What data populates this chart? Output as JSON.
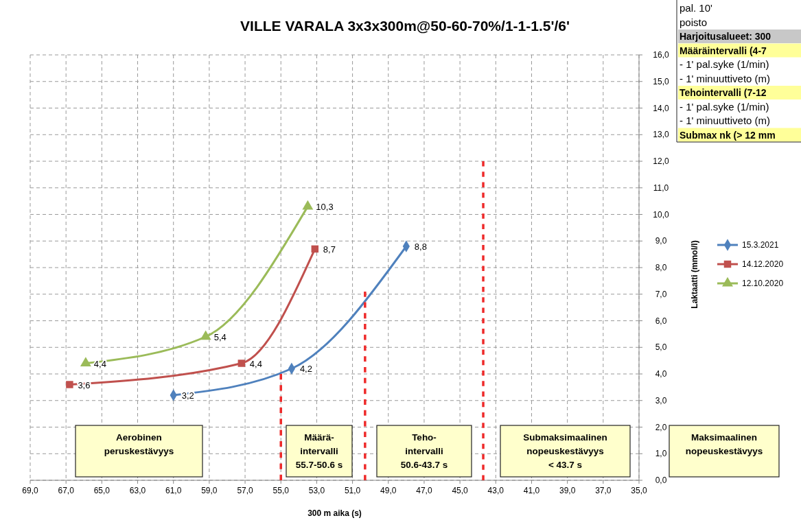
{
  "chart_data": {
    "type": "line",
    "title": "VILLE VARALA 3x3x300m@50-60-70%/1-1-1.5'/6'",
    "xlabel": "300 m aika (s)",
    "ylabel": "Laktaatti (mmol/l)",
    "xlim": [
      69,
      35
    ],
    "xticks": [
      {
        "value": 69,
        "label": "69,0"
      },
      {
        "value": 67,
        "label": "67,0"
      },
      {
        "value": 65,
        "label": "65,0"
      },
      {
        "value": 63,
        "label": "63,0"
      },
      {
        "value": 61,
        "label": "61,0"
      },
      {
        "value": 59,
        "label": "59,0"
      },
      {
        "value": 57,
        "label": "57,0"
      },
      {
        "value": 55,
        "label": "55,0"
      },
      {
        "value": 53,
        "label": "53,0"
      },
      {
        "value": 51,
        "label": "51,0"
      },
      {
        "value": 49,
        "label": "49,0"
      },
      {
        "value": 47,
        "label": "47,0"
      },
      {
        "value": 45,
        "label": "45,0"
      },
      {
        "value": 43,
        "label": "43,0"
      },
      {
        "value": 41,
        "label": "41,0"
      },
      {
        "value": 39,
        "label": "39,0"
      },
      {
        "value": 37,
        "label": "37,0"
      },
      {
        "value": 35,
        "label": "35,0"
      }
    ],
    "ylim": [
      0,
      16
    ],
    "yticks": [
      {
        "value": 0,
        "label": "0,0"
      },
      {
        "value": 1,
        "label": "1,0"
      },
      {
        "value": 2,
        "label": "2,0"
      },
      {
        "value": 3,
        "label": "3,0"
      },
      {
        "value": 4,
        "label": "4,0"
      },
      {
        "value": 5,
        "label": "5,0"
      },
      {
        "value": 6,
        "label": "6,0"
      },
      {
        "value": 7,
        "label": "7,0"
      },
      {
        "value": 8,
        "label": "8,0"
      },
      {
        "value": 9,
        "label": "9,0"
      },
      {
        "value": 10,
        "label": "10,0"
      },
      {
        "value": 11,
        "label": "11,0"
      },
      {
        "value": 12,
        "label": "12,0"
      },
      {
        "value": 13,
        "label": "13,0"
      },
      {
        "value": 14,
        "label": "14,0"
      },
      {
        "value": 15,
        "label": "15,0"
      },
      {
        "value": 16,
        "label": "16,0"
      }
    ],
    "grid": true,
    "legend": "right",
    "series": [
      {
        "name": "15.3.2021",
        "color": "#4f81bd",
        "marker": "diamond",
        "x": [
          61,
          54.4,
          48
        ],
        "values": [
          3.2,
          4.2,
          8.8
        ],
        "value_labels": [
          "3,2",
          "4,2",
          "8,8"
        ]
      },
      {
        "name": "14.12.2020",
        "color": "#c0504d",
        "marker": "square",
        "x": [
          66.8,
          57.2,
          53.1
        ],
        "values": [
          3.6,
          4.4,
          8.7
        ],
        "value_labels": [
          "3,6",
          "4,4",
          "8,7"
        ]
      },
      {
        "name": "12.10.2020",
        "color": "#9bbb59",
        "marker": "triangle",
        "x": [
          65.9,
          59.2,
          53.5
        ],
        "values": [
          4.4,
          5.4,
          10.3
        ],
        "value_labels": [
          "4,4",
          "5,4",
          "10,3"
        ]
      },
      {
        "color": "#ee2a2a",
        "marker": "none",
        "line_style": "dashed",
        "x": [
          55,
          55
        ],
        "values": [
          0,
          4
        ]
      },
      {
        "color": "#ee2a2a",
        "marker": "none",
        "line_style": "dashed",
        "x": [
          50.3,
          50.3
        ],
        "values": [
          0,
          7.1
        ]
      },
      {
        "color": "#ee2a2a",
        "marker": "none",
        "line_style": "dashed",
        "x": [
          43.7,
          43.7
        ],
        "values": [
          0,
          12
        ]
      }
    ],
    "annotations": [
      "Aerobinen\nperuskestävyys",
      "Määrä-\nintervalli\n55.7-50.6 s",
      "Teho-\nintervalli\n50.6-43.7 s",
      "Submaksimaalinen\nnopeuskestävyys\n< 43.7 s",
      "Maksimaalinen\nnopeuskestävyys",
      "pal. 10'",
      "poisto",
      "Harjoitusalueet: 300",
      "Määräintervalli (4-7",
      "- 1' pal.syke (1/min)",
      "- 1' minuuttiveto (m)",
      "Tehointervalli (7-12",
      "- 1' pal.syke (1/min)",
      "- 1' minuuttiveto (m)",
      "Submax nk (> 12 mm"
    ]
  }
}
